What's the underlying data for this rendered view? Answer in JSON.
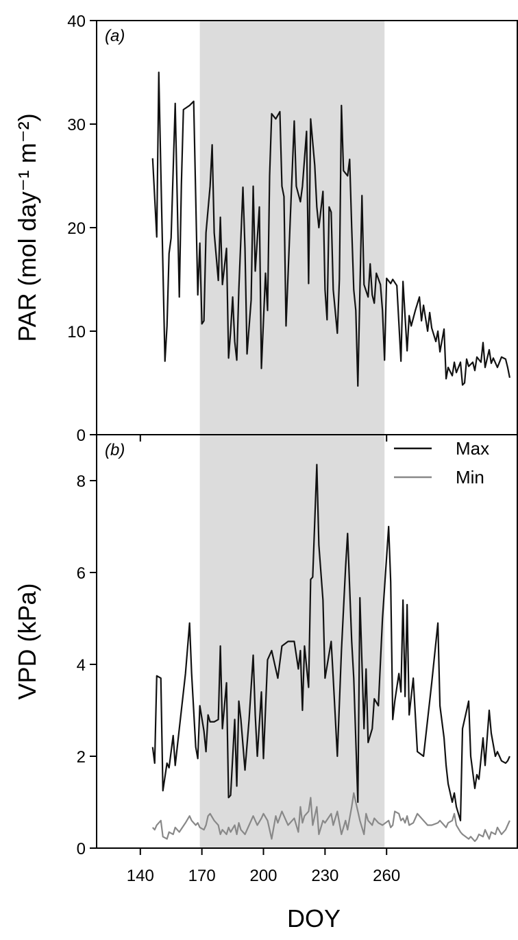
{
  "chart_data": [
    {
      "type": "line",
      "panel_label": "(a)",
      "ylabel": "PAR (mol day⁻¹ m⁻²)",
      "xlim": [
        118.7,
        323.7
      ],
      "xticks": [
        140,
        170,
        200,
        230,
        260
      ],
      "ylim": [
        0,
        40
      ],
      "yticks": [
        0,
        10,
        20,
        30,
        40
      ],
      "shade": [
        169,
        259
      ],
      "shade_color": "#dcdcdc",
      "x": [
        146,
        148,
        149,
        150,
        152,
        153,
        154,
        155,
        157,
        159,
        160,
        161,
        164,
        166,
        168,
        169,
        170,
        171,
        172,
        174,
        175,
        176,
        178,
        179,
        180,
        182,
        183,
        184,
        185,
        186,
        187,
        188,
        190,
        191,
        192,
        194,
        195,
        196,
        198,
        199,
        201,
        202,
        203,
        204,
        206,
        208,
        209,
        210,
        211,
        213,
        215,
        216,
        218,
        219,
        221,
        222,
        223,
        225,
        226,
        227,
        229,
        230,
        231,
        232,
        233,
        234,
        236,
        237,
        238,
        239,
        241,
        242,
        243,
        244,
        245,
        246,
        248,
        249,
        251,
        252,
        253,
        254,
        255,
        257,
        258,
        259,
        260,
        262,
        263,
        265,
        267,
        268,
        270,
        271,
        272,
        274,
        276,
        277,
        278,
        280,
        281,
        282,
        284,
        285,
        286,
        288,
        289,
        290,
        292,
        293,
        294,
        296,
        297,
        298,
        299,
        300,
        302,
        303,
        304,
        306,
        307,
        308,
        310,
        311,
        312,
        314,
        315,
        316,
        318,
        319,
        320
      ],
      "series": [
        {
          "color": "#111111",
          "values": [
            26.7,
            19.1,
            35,
            25.4,
            7.1,
            10.5,
            17.5,
            19,
            32,
            13.3,
            24.1,
            31.4,
            31.8,
            32.2,
            13.5,
            18.5,
            10.7,
            11.0,
            19.5,
            24.0,
            28.0,
            19.5,
            14.9,
            21.0,
            14.5,
            18.0,
            7.4,
            10.0,
            13.3,
            9.0,
            7.2,
            14.0,
            23.9,
            18.0,
            7.8,
            13.0,
            24.0,
            15.8,
            22.0,
            6.4,
            15.6,
            12.0,
            25.0,
            31.0,
            30.5,
            31.2,
            24.0,
            23.0,
            10.5,
            20.5,
            30.3,
            24.0,
            22.5,
            24.0,
            29.3,
            14.6,
            30.5,
            26.0,
            22.0,
            20.0,
            23.5,
            14.0,
            11.1,
            22.0,
            21.5,
            14.0,
            9.8,
            15.0,
            31.8,
            25.5,
            25.0,
            26.6,
            20.0,
            14.0,
            12.0,
            4.7,
            23.1,
            14.5,
            13.3,
            16.5,
            13.5,
            12.7,
            15.6,
            14.5,
            12.0,
            7.2,
            15.1,
            14.6,
            15.0,
            14.4,
            7.1,
            14.8,
            8.1,
            11.5,
            10.5,
            12.0,
            13.3,
            11.0,
            12.5,
            10.0,
            11.8,
            10.3,
            9.0,
            10.0,
            8.0,
            10.2,
            5.4,
            6.5,
            5.7,
            7.0,
            6.0,
            7.0,
            4.8,
            5.0,
            7.3,
            6.6,
            7.0,
            6.2,
            7.5,
            7.0,
            8.9,
            6.5,
            8.2,
            6.9,
            7.4,
            6.5,
            7.0,
            7.5,
            7.3,
            6.5,
            5.5
          ]
        }
      ]
    },
    {
      "type": "line",
      "panel_label": "(b)",
      "ylabel": "VPD (kPa)",
      "xlabel": "DOY",
      "xlim": [
        118.7,
        323.7
      ],
      "xticks": [
        140,
        170,
        200,
        230,
        260
      ],
      "ylim": [
        0,
        9
      ],
      "yticks": [
        0,
        2,
        4,
        6,
        8
      ],
      "shade": [
        169,
        259
      ],
      "shade_color": "#dcdcdc",
      "legend": "upper right",
      "x": [
        146,
        147,
        148,
        150,
        151,
        153,
        154,
        156,
        157,
        159,
        162,
        164,
        165,
        167,
        168,
        169,
        171,
        172,
        173,
        174,
        176,
        178,
        179,
        180,
        182,
        183,
        184,
        186,
        187,
        188,
        189,
        191,
        193,
        195,
        196,
        197,
        199,
        200,
        202,
        204,
        206,
        207,
        209,
        212,
        215,
        217,
        218,
        219,
        220,
        222,
        223,
        224,
        226,
        227,
        229,
        230,
        233,
        234,
        236,
        238,
        240,
        241,
        243,
        244,
        246,
        247,
        249,
        250,
        251,
        253,
        254,
        256,
        258,
        261,
        262,
        263,
        264,
        266,
        267,
        268,
        269,
        270,
        271,
        273,
        275,
        278,
        280,
        282,
        285,
        286,
        288,
        289,
        290,
        292,
        293,
        294,
        296,
        297,
        300,
        301,
        303,
        304,
        305,
        307,
        308,
        310,
        311,
        313,
        314,
        316,
        318,
        319,
        320
      ],
      "series": [
        {
          "name": "Max",
          "color": "#111111",
          "values": [
            2.2,
            1.85,
            3.75,
            3.7,
            1.25,
            1.85,
            1.75,
            2.45,
            1.8,
            2.6,
            3.8,
            4.9,
            3.8,
            2.2,
            1.95,
            3.1,
            2.55,
            2.1,
            2.9,
            2.75,
            2.75,
            2.8,
            4.4,
            2.6,
            3.6,
            1.1,
            1.15,
            2.8,
            1.35,
            3.2,
            2.8,
            1.7,
            2.8,
            4.2,
            2.9,
            2.0,
            3.4,
            1.95,
            4.1,
            4.3,
            3.9,
            3.7,
            4.4,
            4.5,
            4.5,
            3.9,
            4.3,
            3.0,
            4.4,
            3.5,
            5.85,
            5.9,
            8.35,
            6.6,
            5.4,
            3.7,
            4.5,
            3.7,
            2.0,
            4.3,
            6.1,
            6.85,
            4.5,
            3.7,
            1.0,
            5.45,
            2.6,
            3.9,
            2.3,
            2.6,
            3.25,
            3.1,
            5.0,
            7.0,
            5.8,
            2.8,
            3.2,
            3.8,
            3.4,
            5.4,
            3.3,
            5.3,
            2.9,
            3.7,
            2.1,
            2.0,
            2.8,
            3.6,
            4.9,
            3.1,
            2.4,
            1.8,
            1.4,
            1.0,
            1.2,
            0.9,
            0.6,
            2.6,
            3.2,
            2.0,
            1.3,
            1.6,
            1.5,
            2.4,
            1.8,
            3.0,
            2.5,
            2.0,
            2.1,
            1.9,
            1.85,
            1.9,
            2.0
          ]
        },
        {
          "name": "Min",
          "color": "#888888",
          "values": [
            0.45,
            0.4,
            0.5,
            0.6,
            0.25,
            0.2,
            0.35,
            0.3,
            0.45,
            0.35,
            0.55,
            0.7,
            0.6,
            0.5,
            0.55,
            0.45,
            0.4,
            0.5,
            0.7,
            0.75,
            0.6,
            0.5,
            0.3,
            0.4,
            0.3,
            0.45,
            0.35,
            0.5,
            0.3,
            0.55,
            0.4,
            0.3,
            0.5,
            0.7,
            0.6,
            0.5,
            0.65,
            0.75,
            0.6,
            0.2,
            0.7,
            0.55,
            0.8,
            0.5,
            0.65,
            0.35,
            0.9,
            0.55,
            0.7,
            0.8,
            1.1,
            0.5,
            0.9,
            0.3,
            0.6,
            0.55,
            0.75,
            0.5,
            0.8,
            0.3,
            0.6,
            0.4,
            0.9,
            1.2,
            0.8,
            0.6,
            0.3,
            0.75,
            0.6,
            0.5,
            0.65,
            0.55,
            0.5,
            0.6,
            0.45,
            0.5,
            0.8,
            0.75,
            0.6,
            0.65,
            0.55,
            0.7,
            0.5,
            0.55,
            0.75,
            0.6,
            0.5,
            0.5,
            0.55,
            0.6,
            0.5,
            0.45,
            0.55,
            0.6,
            0.75,
            0.5,
            0.35,
            0.3,
            0.2,
            0.25,
            0.15,
            0.2,
            0.3,
            0.25,
            0.4,
            0.2,
            0.35,
            0.3,
            0.45,
            0.3,
            0.4,
            0.5,
            0.6
          ]
        }
      ]
    }
  ]
}
